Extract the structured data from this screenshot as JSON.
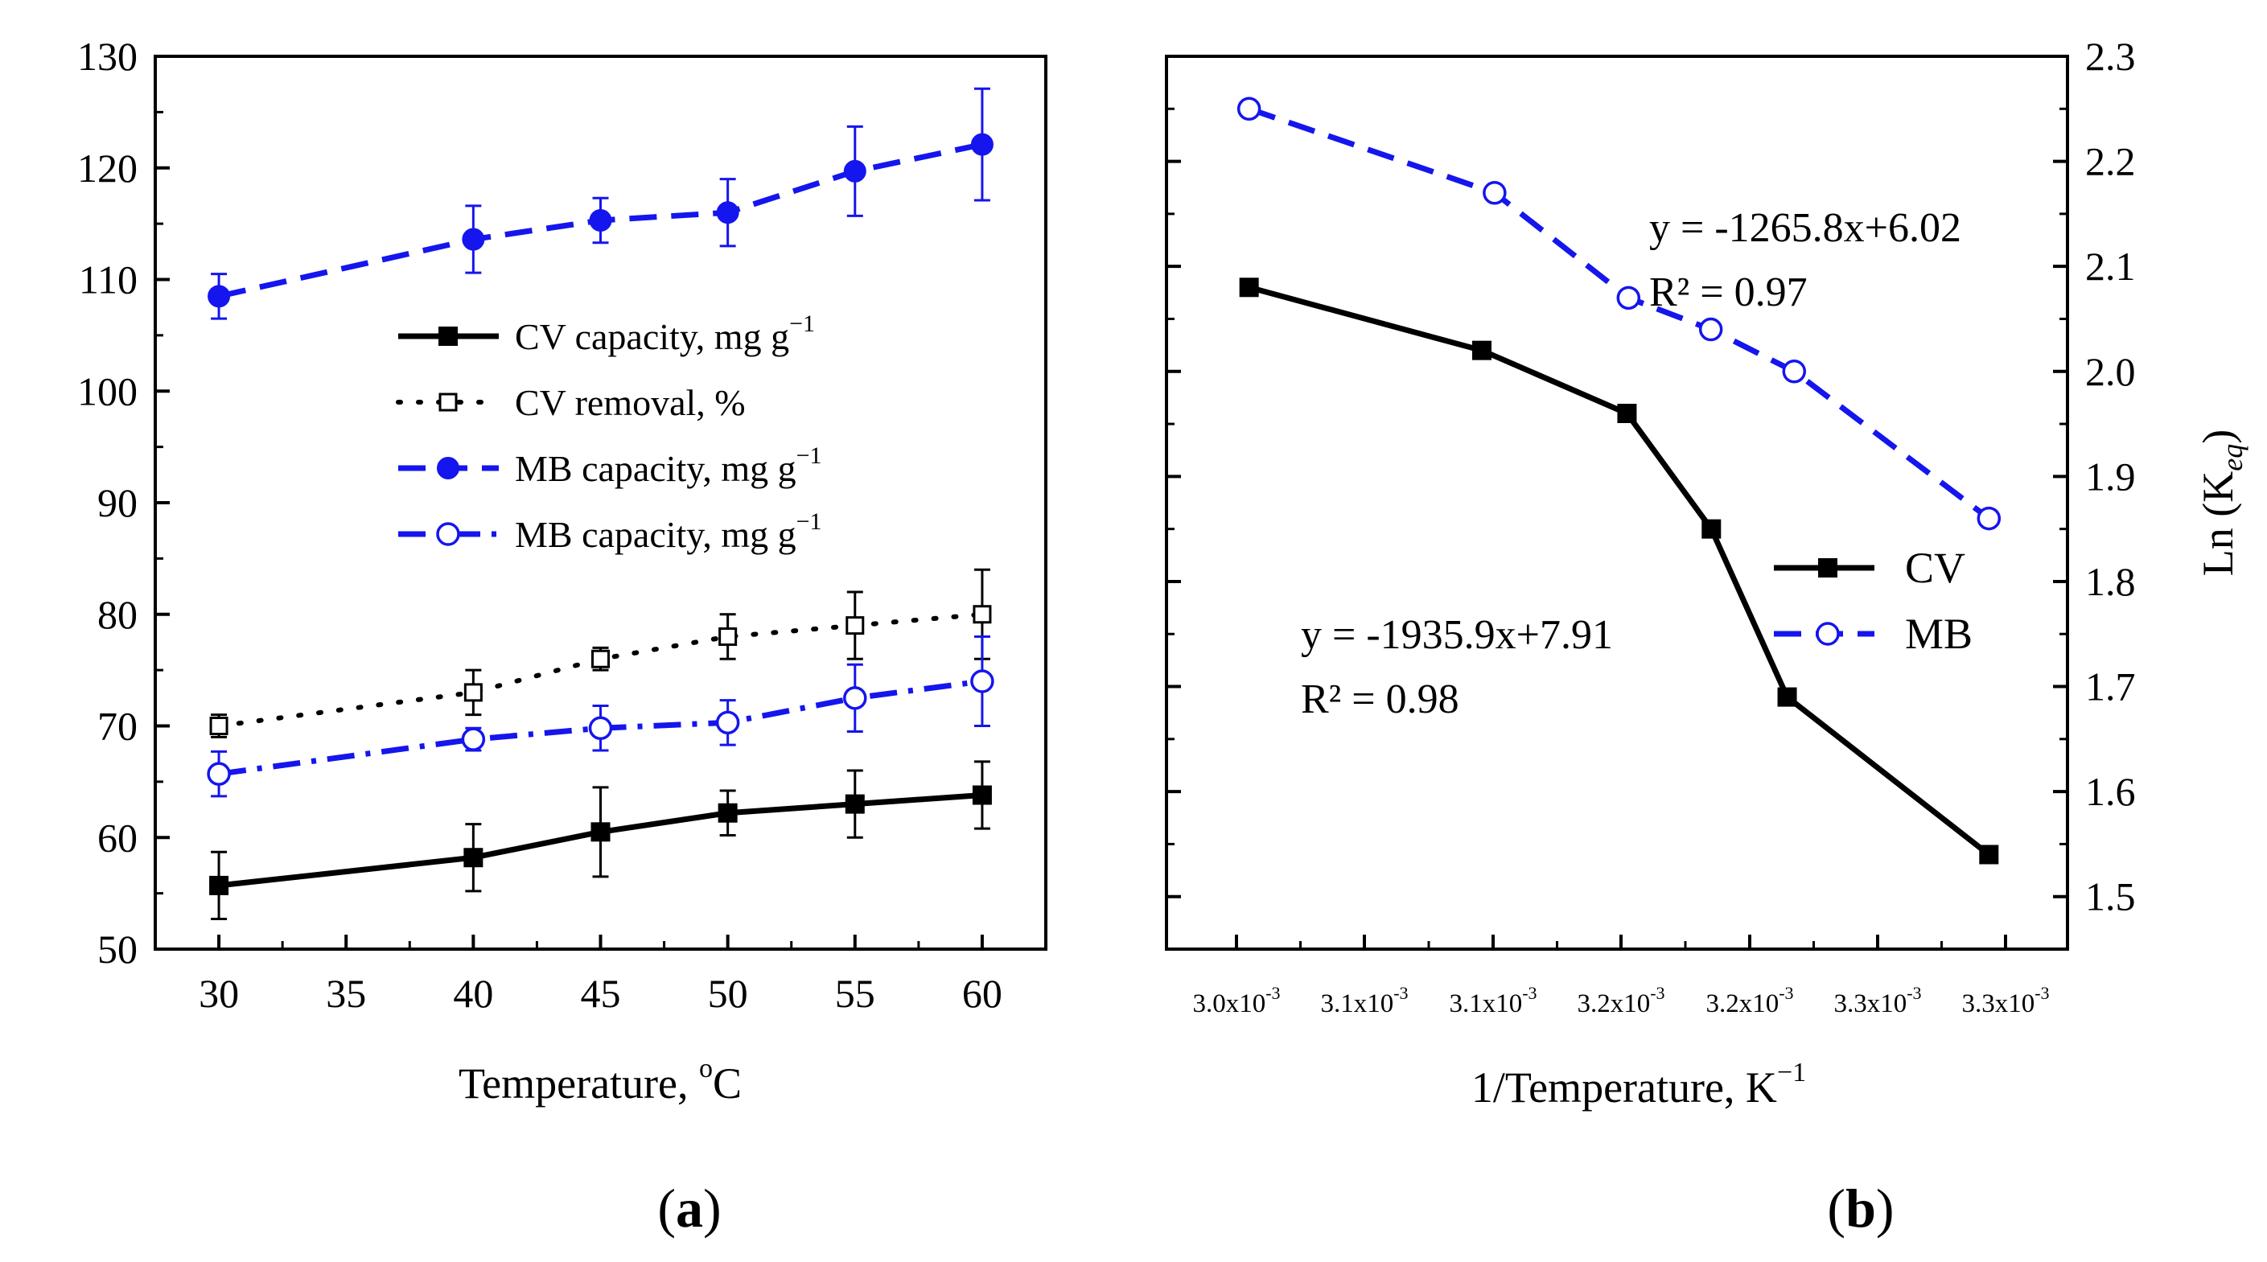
{
  "chart_data": [
    {
      "panel": "(a)",
      "type": "line",
      "xlabel": "Temperature, °C",
      "ylabel": "",
      "xlim": [
        27.5,
        62.5
      ],
      "ylim": [
        50,
        130
      ],
      "x_ticks": [
        "30",
        "35",
        "40",
        "45",
        "50",
        "55",
        "60"
      ],
      "y_ticks": [
        "50",
        "60",
        "70",
        "80",
        "90",
        "100",
        "110",
        "120",
        "130"
      ],
      "grid": false,
      "legend_position": "center-left",
      "x": [
        30,
        40,
        45,
        50,
        55,
        60
      ],
      "series": [
        {
          "name": "CV capacity, mg g",
          "name_sup": "−1",
          "color": "#000000",
          "line_style": "solid",
          "marker": "filled-square",
          "values": [
            55.7,
            58.2,
            60.5,
            62.2,
            63.0,
            63.8
          ],
          "errors": [
            3.0,
            3.0,
            4.0,
            2.0,
            3.0,
            3.0
          ]
        },
        {
          "name": "CV removal, %",
          "name_sup": "",
          "color": "#000000",
          "line_style": "dotted",
          "marker": "open-square",
          "values": [
            70.0,
            73.0,
            76.0,
            78.0,
            79.0,
            80.0
          ],
          "errors": [
            1.0,
            2.0,
            1.0,
            2.0,
            3.0,
            4.0
          ]
        },
        {
          "name": "MB capacity, mg g",
          "name_sup": "−1",
          "color": "#1515ee",
          "line_style": "dashed",
          "marker": "filled-circle",
          "values": [
            108.5,
            113.6,
            115.3,
            116.0,
            119.7,
            122.1
          ],
          "errors": [
            2.0,
            3.0,
            2.0,
            3.0,
            4.0,
            5.0
          ]
        },
        {
          "name": "MB capacity, mg g",
          "name_sup": "−1",
          "color": "#1515ee",
          "line_style": "dash-dot",
          "marker": "open-circle",
          "values": [
            65.7,
            68.8,
            69.8,
            70.3,
            72.5,
            74.0
          ],
          "errors": [
            2.0,
            1.0,
            2.0,
            2.0,
            3.0,
            4.0
          ]
        }
      ]
    },
    {
      "panel": "(b)",
      "type": "line",
      "xlabel": "1/Temperature, K",
      "xlabel_sup": "−1",
      "ylabel": "Ln (K",
      "ylabel_sub": "eq",
      "ylabel_end": ")",
      "y_axis_side": "right",
      "xlim": [
        0.00297,
        0.00333
      ],
      "ylim": [
        1.45,
        2.3
      ],
      "x_ticks": [
        "3.0x10",
        "3.1x10",
        "3.1x10",
        "3.2x10",
        "3.2x10",
        "3.3x10",
        "3.3x10"
      ],
      "x_ticks_sup": "-3",
      "y_ticks": [
        "1.5",
        "1.6",
        "1.7",
        "1.8",
        "1.9",
        "2.0",
        "2.1",
        "2.2",
        "2.3"
      ],
      "grid": false,
      "legend_position": "right",
      "x": [
        0.003002,
        0.003096,
        0.003193,
        0.0033
      ],
      "series": [
        {
          "name": "CV",
          "color": "#000000",
          "line_style": "solid",
          "marker": "filled-square",
          "x": [
            0.003003,
            0.003096,
            0.003154,
            0.0031877,
            0.003218,
            0.0032986
          ],
          "values": [
            2.08,
            2.02,
            1.96,
            1.85,
            1.69,
            1.54
          ]
        },
        {
          "name": "MB",
          "color": "#1515ee",
          "line_style": "dashed",
          "marker": "open-circle",
          "x": [
            0.003003,
            0.0031011,
            0.0031546,
            0.0031875,
            0.0032208,
            0.0032986
          ],
          "values": [
            2.25,
            2.17,
            2.07,
            2.04,
            2.0,
            1.86
          ]
        }
      ],
      "annotations": [
        {
          "line1": "y = -1265.8x+6.02",
          "line2": "R² = 0.97"
        },
        {
          "line1": "y = -1935.9x+7.91",
          "line2": "R² = 0.98"
        }
      ]
    }
  ],
  "labels": {
    "a_x_prefix": "Temperature, ",
    "a_x_sup": "o",
    "a_x_suffix": "C",
    "panel_a_open": "(",
    "panel_a_letter": "a",
    "panel_a_close": ")",
    "panel_b_open": "(",
    "panel_b_letter": "b",
    "panel_b_close": ")"
  }
}
